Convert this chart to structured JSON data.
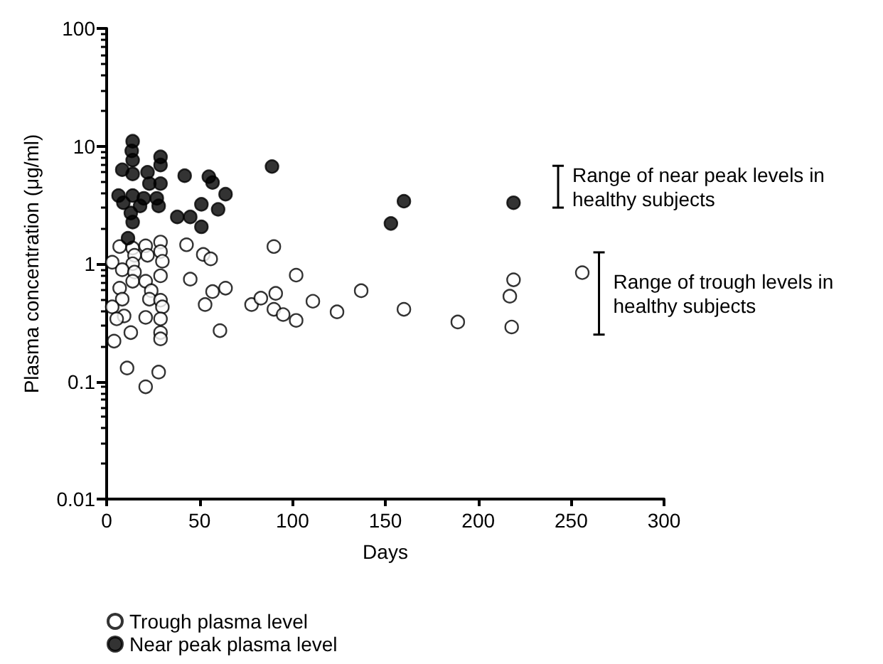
{
  "chart_data": {
    "type": "scatter",
    "xlabel": "Days",
    "ylabel": "Plasma concentration (μg/ml)",
    "log": "y",
    "xlim": [
      0,
      300
    ],
    "xticks": [
      0,
      50,
      100,
      150,
      200,
      250,
      300
    ],
    "ylim": [
      0.01,
      100
    ],
    "yticks": [
      0.01,
      0.1,
      1,
      10,
      100
    ],
    "grid": false,
    "legend": "bottom",
    "marker": "circle",
    "series": [
      {
        "name": "Trough plasma level",
        "color": "#ffffff",
        "x": [
          7,
          14,
          21,
          29,
          22,
          29,
          15,
          30,
          3,
          14,
          8.4,
          15,
          29,
          14,
          21,
          7,
          24,
          8.4,
          23,
          29,
          3,
          30,
          9.4,
          5.4,
          21,
          29,
          13,
          29,
          29,
          4,
          11,
          28,
          21,
          43,
          52,
          56,
          45,
          64,
          57,
          53,
          61,
          78,
          83,
          90,
          91,
          90,
          95,
          102,
          102,
          111,
          124,
          137,
          160,
          189,
          219,
          217,
          218,
          256
        ],
        "values": [
          1.4,
          1.36,
          1.42,
          1.53,
          1.18,
          1.27,
          1.18,
          1.05,
          1.03,
          1.0,
          0.89,
          0.85,
          0.79,
          0.71,
          0.71,
          0.62,
          0.59,
          0.5,
          0.5,
          0.49,
          0.43,
          0.43,
          0.36,
          0.34,
          0.35,
          0.34,
          0.26,
          0.26,
          0.23,
          0.22,
          0.13,
          0.12,
          0.09,
          1.45,
          1.2,
          1.1,
          0.74,
          0.62,
          0.58,
          0.45,
          0.27,
          0.45,
          0.51,
          1.4,
          0.56,
          0.41,
          0.37,
          0.8,
          0.33,
          0.48,
          0.39,
          0.59,
          0.41,
          0.32,
          0.73,
          0.53,
          0.29,
          0.84
        ]
      },
      {
        "name": "Near peak plasma level",
        "color": "#000000",
        "x": [
          14,
          13.5,
          8.4,
          14,
          29,
          29,
          22,
          14,
          23,
          29,
          6.4,
          14,
          20,
          27,
          9,
          18,
          28,
          13,
          14,
          11.5,
          42,
          55,
          57,
          64,
          51,
          60,
          38,
          45,
          51,
          89,
          160,
          153,
          219
        ],
        "values": [
          11,
          9.1,
          6.3,
          7.6,
          8.1,
          6.9,
          6.0,
          5.8,
          4.8,
          4.8,
          3.8,
          3.8,
          3.6,
          3.6,
          3.3,
          3.1,
          3.1,
          2.7,
          2.26,
          1.65,
          5.6,
          5.5,
          4.9,
          3.9,
          3.2,
          2.9,
          2.5,
          2.5,
          2.06,
          6.7,
          3.4,
          2.2,
          3.3
        ]
      },
      {
        "type": "bar",
        "color": "#000000",
        "x": [
          243
        ],
        "base": [
          3.0
        ],
        "values": [
          3.8
        ]
      },
      {
        "type": "bar",
        "color": "#000000",
        "x": [
          265
        ],
        "base": [
          0.25
        ],
        "values": [
          1.0
        ]
      }
    ],
    "annotations": [
      {
        "text": "Range of near peak levels in healthy subjects",
        "x": 243,
        "y": 4.5
      },
      {
        "text": "Range of trough levels in healthy subjects",
        "x": 265,
        "y": 0.56
      }
    ]
  }
}
